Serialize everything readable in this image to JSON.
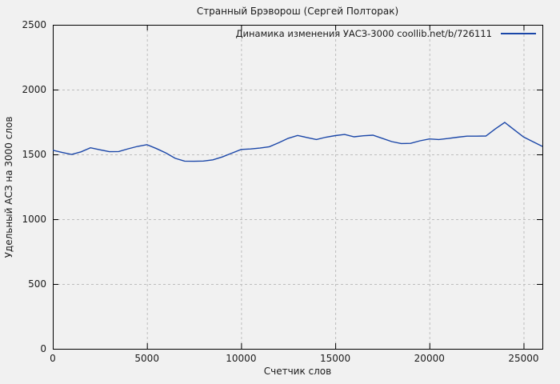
{
  "window": {
    "background_color": "#f1f1f1"
  },
  "chart_data": {
    "type": "line",
    "title": "Странный Брэворош (Сергей Полторак)",
    "legend": "Динамика изменения УАСЗ-3000 coollib.net/b/726111",
    "legend_position": "top-right-inside",
    "xlabel": "Счетчик слов",
    "ylabel": "Удельный АСЗ на 3000 слов",
    "xlim": [
      0,
      26000
    ],
    "ylim": [
      0,
      2500
    ],
    "xticks": [
      0,
      5000,
      10000,
      15000,
      20000,
      25000
    ],
    "yticks": [
      0,
      500,
      1000,
      1500,
      2000,
      2500
    ],
    "grid": true,
    "grid_style": "dashed",
    "series": [
      {
        "name": "Динамика изменения УАСЗ-3000 coollib.net/b/726111",
        "color": "#1a46a8",
        "x": [
          0,
          500,
          1000,
          1500,
          2000,
          2500,
          3000,
          3500,
          4000,
          4500,
          5000,
          5500,
          6000,
          6500,
          7000,
          7500,
          8000,
          8500,
          9000,
          9500,
          10000,
          10500,
          11000,
          11500,
          12000,
          12500,
          13000,
          13500,
          14000,
          14500,
          15000,
          15500,
          16000,
          16500,
          17000,
          17500,
          18000,
          18500,
          19000,
          19500,
          20000,
          20500,
          21000,
          21500,
          22000,
          22500,
          23000,
          23500,
          24000,
          24500,
          25000,
          25500,
          26000
        ],
        "y": [
          1532,
          1515,
          1500,
          1520,
          1551,
          1536,
          1521,
          1522,
          1543,
          1562,
          1575,
          1545,
          1512,
          1470,
          1448,
          1447,
          1449,
          1458,
          1480,
          1509,
          1538,
          1542,
          1549,
          1559,
          1590,
          1624,
          1646,
          1630,
          1615,
          1633,
          1645,
          1654,
          1636,
          1644,
          1648,
          1624,
          1599,
          1584,
          1585,
          1605,
          1619,
          1615,
          1623,
          1633,
          1641,
          1641,
          1642,
          1697,
          1747,
          1690,
          1634,
          1598,
          1562
        ]
      }
    ],
    "colors": {
      "line": "#1a46a8",
      "grid": "#bdbdbd",
      "axis": "#000000",
      "background": "#f1f1f1",
      "text": "#1a1a1a"
    }
  }
}
